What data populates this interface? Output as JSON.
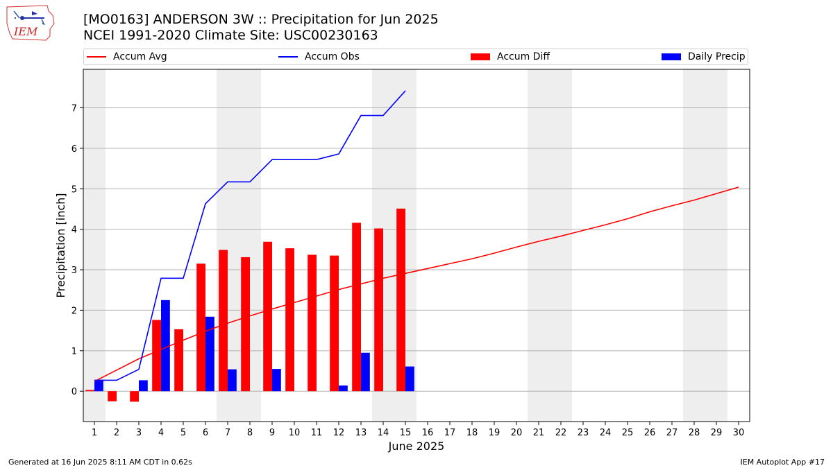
{
  "header": {
    "logo_text": "IEM",
    "title_line1": "[MO0163] ANDERSON 3W :: Precipitation for Jun 2025",
    "title_line2": "NCEI 1991-2020 Climate Site: USC00230163"
  },
  "footer": {
    "left": "Generated at 16 Jun 2025 8:11 AM CDT in 0.62s",
    "right": "IEM Autoplot App #17"
  },
  "colors": {
    "accum_avg": "#ff0000",
    "accum_obs": "#0000ff",
    "accum_diff": "#ff0000",
    "daily_precip": "#0000ff",
    "weekend_shade": "#eeeeee",
    "grid": "#b0b0b0"
  },
  "chart_data": {
    "type": "bar",
    "xlabel": "June 2025",
    "ylabel": "Precipitation [inch]",
    "xlim": [
      0.5,
      30.5
    ],
    "ylim": [
      -0.75,
      7.95
    ],
    "x_ticks": [
      1,
      2,
      3,
      4,
      5,
      6,
      7,
      8,
      9,
      10,
      11,
      12,
      13,
      14,
      15,
      16,
      17,
      18,
      19,
      20,
      21,
      22,
      23,
      24,
      25,
      26,
      27,
      28,
      29,
      30
    ],
    "y_ticks": [
      0,
      1,
      2,
      3,
      4,
      5,
      6,
      7
    ],
    "grid": "horizontal",
    "legend_position": "top",
    "weekend_days": [
      1,
      7,
      8,
      14,
      15,
      21,
      22,
      28,
      29
    ],
    "series": [
      {
        "name": "Accum Avg",
        "kind": "line",
        "x": [
          1,
          2,
          3,
          4,
          5,
          6,
          7,
          8,
          9,
          10,
          11,
          12,
          13,
          14,
          15,
          16,
          17,
          18,
          19,
          20,
          21,
          22,
          23,
          24,
          25,
          26,
          27,
          28,
          29,
          30
        ],
        "values": [
          0.24,
          0.52,
          0.8,
          1.03,
          1.26,
          1.48,
          1.68,
          1.86,
          2.03,
          2.19,
          2.35,
          2.51,
          2.65,
          2.79,
          2.91,
          3.03,
          3.15,
          3.27,
          3.41,
          3.56,
          3.7,
          3.83,
          3.97,
          4.11,
          4.26,
          4.43,
          4.58,
          4.72,
          4.88,
          5.04
        ]
      },
      {
        "name": "Accum Obs",
        "kind": "line",
        "x": [
          1,
          2,
          3,
          4,
          5,
          6,
          7,
          8,
          9,
          10,
          11,
          12,
          13,
          14,
          15
        ],
        "values": [
          0.27,
          0.27,
          0.54,
          2.79,
          2.79,
          4.63,
          5.17,
          5.17,
          5.72,
          5.72,
          5.72,
          5.86,
          6.81,
          6.81,
          7.42
        ]
      },
      {
        "name": "Accum Diff",
        "kind": "bar",
        "x": [
          1,
          2,
          3,
          4,
          5,
          6,
          7,
          8,
          9,
          10,
          11,
          12,
          13,
          14,
          15
        ],
        "values": [
          0.03,
          -0.25,
          -0.26,
          1.76,
          1.53,
          3.15,
          3.49,
          3.31,
          3.69,
          3.53,
          3.37,
          3.35,
          4.16,
          4.02,
          4.51
        ]
      },
      {
        "name": "Daily Precip",
        "kind": "bar",
        "x": [
          1,
          2,
          3,
          4,
          5,
          6,
          7,
          8,
          9,
          10,
          11,
          12,
          13,
          14,
          15
        ],
        "values": [
          0.27,
          0,
          0.27,
          2.25,
          0,
          1.84,
          0.54,
          0,
          0.55,
          0,
          0,
          0.14,
          0.95,
          0,
          0.61
        ]
      }
    ]
  }
}
